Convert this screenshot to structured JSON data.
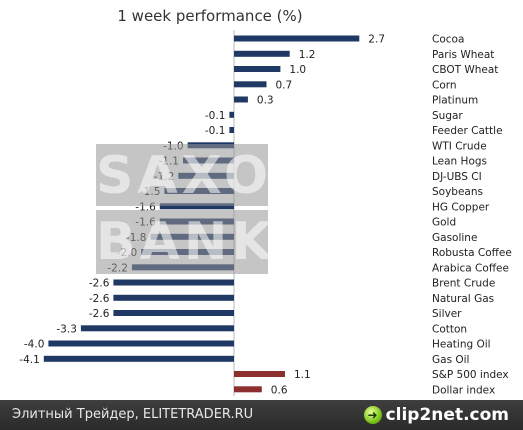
{
  "chart_data": {
    "type": "bar",
    "orientation": "horizontal",
    "title": "1 week performance (%)",
    "categories": [
      "Cocoa",
      "Paris Wheat",
      "CBOT Wheat",
      "Corn",
      "Platinum",
      "Sugar",
      "Feeder Cattle",
      "WTI Crude",
      "Lean Hogs",
      "DJ-UBS CI",
      "Soybeans",
      "HG Copper",
      "Gold",
      "Gasoline",
      "Robusta Coffee",
      "Arabica Coffee",
      "Brent Crude",
      "Natural Gas",
      "Silver",
      "Cotton",
      "Heating Oil",
      "Gas Oil",
      "S&P 500 index",
      "Dollar index"
    ],
    "values": [
      2.7,
      1.2,
      1.0,
      0.7,
      0.3,
      -0.1,
      -0.1,
      -1.0,
      -1.1,
      -1.2,
      -1.5,
      -1.6,
      -1.6,
      -1.8,
      -2.0,
      -2.2,
      -2.6,
      -2.6,
      -2.6,
      -3.3,
      -4.0,
      -4.1,
      1.1,
      0.6
    ],
    "value_labels": [
      "2.7",
      "1.2",
      "1.0",
      "0.7",
      "0.3",
      "-0.1",
      "-0.1",
      "-1.0",
      "-1.1",
      "-1.2",
      "-1.5",
      "-1.6",
      "-1.6",
      "-1.8",
      "-2.0",
      "-2.2",
      "-2.6",
      "-2.6",
      "-2.6",
      "-3.3",
      "-4.0",
      "-4.1",
      "1.1",
      "0.6"
    ],
    "bar_colors": [
      "#1f3864",
      "#1f3864",
      "#1f3864",
      "#1f3864",
      "#1f3864",
      "#1f3864",
      "#1f3864",
      "#1f3864",
      "#1f3864",
      "#1f3864",
      "#1f3864",
      "#1f3864",
      "#1f3864",
      "#1f3864",
      "#1f3864",
      "#1f3864",
      "#1f3864",
      "#1f3864",
      "#1f3864",
      "#1f3864",
      "#1f3864",
      "#1f3864",
      "#8b2f2f",
      "#8b2f2f"
    ],
    "xlim": [
      -4.1,
      2.7
    ],
    "grid": false,
    "legend": "none"
  },
  "watermark": {
    "line1": "SAXO",
    "line2": "BANK"
  },
  "footer": {
    "left_text": "Элитный Трейдер, ELITETRADER.RU",
    "logo_text": "clip2net.com"
  },
  "colors": {
    "commodity_bar": "#1f3864",
    "index_bar": "#8b2f2f",
    "footer_bg": "#333333"
  }
}
